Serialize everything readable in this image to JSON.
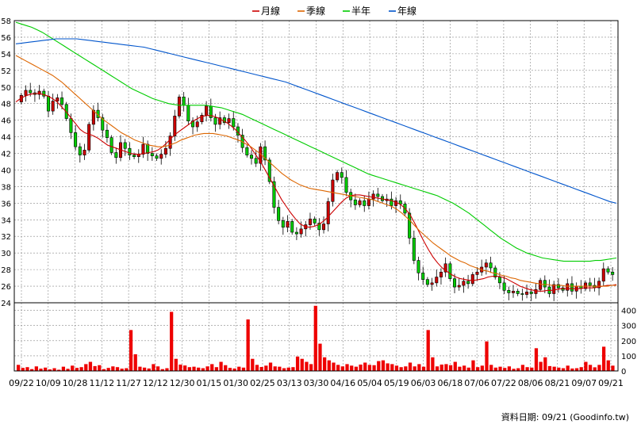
{
  "chart_data": [
    {
      "type": "candlestick",
      "legend": {
        "placement": "top-center",
        "items": [
          {
            "name": "月線",
            "color": "#cc0000"
          },
          {
            "name": "季線",
            "color": "#dd6600"
          },
          {
            "name": "半年",
            "color": "#00cc00"
          },
          {
            "name": "年線",
            "color": "#0055cc"
          }
        ]
      },
      "ylim": [
        24,
        58
      ],
      "yticks": [
        24,
        26,
        28,
        30,
        32,
        34,
        36,
        38,
        40,
        42,
        44,
        46,
        48,
        50,
        52,
        54,
        56,
        58
      ],
      "grid": true,
      "up_color": "#cc0000",
      "down_color": "#00cc00",
      "close": [
        49,
        49.6,
        49.3,
        49.1,
        49.5,
        48.9,
        47.1,
        48.3,
        48.7,
        47.9,
        46.2,
        44.5,
        42.8,
        41.8,
        42.4,
        45.5,
        47.2,
        46.3,
        44.8,
        43.9,
        42.1,
        41.5,
        43.3,
        42.6,
        41.8,
        41.6,
        41.9,
        43.1,
        42,
        41.7,
        41.4,
        41.9,
        42.6,
        44.1,
        46.5,
        48.8,
        47.8,
        45.9,
        45.2,
        45.8,
        46.6,
        47.7,
        46.3,
        45.5,
        46.3,
        45.7,
        46.2,
        45.2,
        44.2,
        42.7,
        41.8,
        41.4,
        40.8,
        42.8,
        41.2,
        38.6,
        35.5,
        33.9,
        33.1,
        33.8,
        32.5,
        32.3,
        32.9,
        33.4,
        34.1,
        33.6,
        32.8,
        33.5,
        36.2,
        38.8,
        39.7,
        39.1,
        37.3,
        36.4,
        35.8,
        36.3,
        35.7,
        36.5,
        37.1,
        36.8,
        36.3,
        36.5,
        35.7,
        36.3,
        35.9,
        34.8,
        31.8,
        29.1,
        27.6,
        26.8,
        26.2,
        26.4,
        27.1,
        27.7,
        28.7,
        26.9,
        25.9,
        26.1,
        26.6,
        26.3,
        27.4,
        27.7,
        28.3,
        28.8,
        28.2,
        27.1,
        26.4,
        25.5,
        25.2,
        25.4,
        25.1,
        25,
        25.3,
        25.1,
        25.6,
        26.7,
        25.9,
        25.1,
        26.2,
        25.8,
        25.5,
        26.3,
        25.4,
        26,
        25.7,
        26.4,
        26.1,
        25.8,
        26.6,
        28.1,
        27.7,
        27.4
      ],
      "ma": {
        "月線": [
          48.2,
          48.6,
          48.9,
          49.1,
          49.2,
          49.2,
          49.1,
          48.9,
          48.6,
          48.2,
          47.6,
          47,
          46.3,
          45.6,
          44.9,
          44.5,
          44.3,
          44.1,
          43.8,
          43.4,
          43,
          42.8,
          42.6,
          42.4,
          42.2,
          42,
          41.9,
          41.9,
          42,
          42.1,
          42.2,
          42.4,
          42.8,
          43.3,
          43.9,
          44.4,
          44.8,
          45.2,
          45.6,
          46,
          46.3,
          46.5,
          46.6,
          46.5,
          46.3,
          46,
          45.7,
          45.3,
          44.8,
          44.2,
          43.6,
          42.9,
          42.1,
          41.3,
          40.4,
          39.4,
          38.4,
          37.4,
          36.4,
          35.6,
          34.8,
          34.1,
          33.5,
          33.2,
          33.1,
          33.2,
          33.4,
          33.8,
          34.3,
          34.9,
          35.5,
          36.1,
          36.6,
          36.9,
          37,
          37,
          36.9,
          36.8,
          36.7,
          36.6,
          36.5,
          36.4,
          36.3,
          36.1,
          35.8,
          35.3,
          34.6,
          33.6,
          32.5,
          31.4,
          30.4,
          29.5,
          28.8,
          28.2,
          27.8,
          27.4,
          27.1,
          26.9,
          26.8,
          26.7,
          26.7,
          26.8,
          26.9,
          27.1,
          27.2,
          27.2,
          27.1,
          26.9,
          26.6,
          26.3,
          26,
          25.8,
          25.6,
          25.5,
          25.4,
          25.4,
          25.5,
          25.5,
          25.6,
          25.7,
          25.7,
          25.7,
          25.7,
          25.7,
          25.8,
          25.8,
          25.8,
          25.9,
          26,
          26.1,
          26.1,
          26.2
        ],
        "季線": [
          53.8,
          53.5,
          53.2,
          52.9,
          52.6,
          52.3,
          52,
          51.7,
          51.4,
          51,
          50.6,
          50.1,
          49.6,
          49.1,
          48.6,
          48.1,
          47.6,
          47.1,
          46.6,
          46.1,
          45.7,
          45.3,
          44.9,
          44.5,
          44.2,
          43.9,
          43.6,
          43.4,
          43.2,
          43,
          42.9,
          42.8,
          42.8,
          42.9,
          43.1,
          43.3,
          43.6,
          43.8,
          44,
          44.2,
          44.3,
          44.4,
          44.4,
          44.4,
          44.3,
          44.2,
          44.1,
          43.9,
          43.7,
          43.5,
          43.2,
          42.9,
          42.5,
          42.1,
          41.6,
          41.1,
          40.6,
          40.1,
          39.6,
          39.2,
          38.8,
          38.5,
          38.2,
          38,
          37.8,
          37.7,
          37.6,
          37.5,
          37.4,
          37.3,
          37.2,
          37.1,
          37,
          36.9,
          36.8,
          36.7,
          36.6,
          36.5,
          36.4,
          36.2,
          36,
          35.8,
          35.6,
          35.3,
          34.9,
          34.4,
          33.9,
          33.3,
          32.7,
          32.2,
          31.7,
          31.2,
          30.8,
          30.4,
          30,
          29.6,
          29.3,
          29,
          28.8,
          28.5,
          28.3,
          28.1,
          27.9,
          27.8,
          27.6,
          27.5,
          27.3,
          27.2,
          27,
          26.9,
          26.7,
          26.6,
          26.5,
          26.4,
          26.3,
          26.2,
          26.2,
          26.1,
          26.1,
          26.1,
          26,
          26,
          26,
          26,
          26,
          26,
          26,
          26,
          26,
          26,
          26.1,
          26.1
        ],
        "半年": [
          57.8,
          57.6,
          57.4,
          57.2,
          56.9,
          56.6,
          56.2,
          55.8,
          55.4,
          55,
          54.6,
          54.2,
          53.8,
          53.4,
          53,
          52.6,
          52.2,
          51.8,
          51.4,
          51,
          50.6,
          50.2,
          49.8,
          49.5,
          49.2,
          48.9,
          48.6,
          48.4,
          48.2,
          48,
          47.9,
          47.8,
          47.8,
          47.8,
          47.8,
          47.8,
          47.8,
          47.7,
          47.6,
          47.5,
          47.3,
          47.1,
          46.9,
          46.7,
          46.4,
          46.1,
          45.8,
          45.5,
          45.2,
          44.9,
          44.6,
          44.3,
          44,
          43.7,
          43.4,
          43.1,
          42.8,
          42.5,
          42.2,
          41.9,
          41.6,
          41.3,
          41,
          40.7,
          40.4,
          40.1,
          39.8,
          39.5,
          39.3,
          39.1,
          38.9,
          38.7,
          38.5,
          38.3,
          38.1,
          37.9,
          37.7,
          37.5,
          37.3,
          37.1,
          36.9,
          36.6,
          36.3,
          36,
          35.6,
          35.2,
          34.8,
          34.3,
          33.8,
          33.3,
          32.8,
          32.3,
          31.8,
          31.4,
          31,
          30.6,
          30.3,
          30,
          29.8,
          29.6,
          29.4,
          29.3,
          29.2,
          29.1,
          29,
          29,
          29,
          29,
          29,
          29,
          29.1,
          29.1,
          29.2,
          29.3,
          29.4
        ],
        "年線": [
          55.2,
          55.3,
          55.4,
          55.5,
          55.6,
          55.7,
          55.8,
          55.8,
          55.8,
          55.8,
          55.7,
          55.6,
          55.5,
          55.4,
          55.3,
          55.2,
          55.1,
          55,
          54.9,
          54.8,
          54.6,
          54.4,
          54.2,
          54,
          53.8,
          53.6,
          53.4,
          53.2,
          53,
          52.8,
          52.6,
          52.4,
          52.2,
          52,
          51.8,
          51.6,
          51.4,
          51.2,
          51,
          50.8,
          50.6,
          50.3,
          50,
          49.7,
          49.4,
          49.1,
          48.8,
          48.5,
          48.2,
          47.9,
          47.6,
          47.3,
          47,
          46.7,
          46.4,
          46.1,
          45.8,
          45.5,
          45.2,
          44.9,
          44.6,
          44.3,
          44,
          43.7,
          43.4,
          43.1,
          42.8,
          42.5,
          42.2,
          41.9,
          41.6,
          41.3,
          41,
          40.7,
          40.4,
          40.1,
          39.8,
          39.5,
          39.2,
          38.9,
          38.6,
          38.3,
          38,
          37.7,
          37.4,
          37.1,
          36.8,
          36.5,
          36.2,
          36
        ]
      },
      "x_ticklabels": [
        "09/22",
        "10/09",
        "10/28",
        "11/12",
        "11/27",
        "12/12",
        "12/30",
        "01/15",
        "01/30",
        "02/25",
        "03/13",
        "03/30",
        "04/16",
        "05/04",
        "05/19",
        "06/03",
        "06/18",
        "07/06",
        "07/22",
        "08/06",
        "08/21",
        "09/07",
        "09/21"
      ]
    },
    {
      "type": "bar",
      "title": "",
      "color": "#ee0000",
      "ylim": [
        0,
        450
      ],
      "yticks": [
        0,
        100,
        200,
        300,
        400
      ],
      "grid": true,
      "values": [
        40,
        20,
        25,
        12,
        30,
        15,
        22,
        10,
        18,
        8,
        28,
        14,
        35,
        20,
        25,
        45,
        60,
        32,
        38,
        12,
        20,
        30,
        25,
        15,
        18,
        270,
        110,
        28,
        22,
        16,
        45,
        30,
        12,
        18,
        390,
        80,
        42,
        36,
        25,
        28,
        22,
        18,
        30,
        45,
        25,
        60,
        38,
        20,
        16,
        28,
        22,
        340,
        80,
        40,
        26,
        35,
        55,
        30,
        28,
        18,
        22,
        25,
        95,
        80,
        60,
        45,
        430,
        180,
        90,
        70,
        55,
        40,
        30,
        45,
        35,
        28,
        42,
        55,
        40,
        38,
        65,
        70,
        50,
        45,
        35,
        25,
        30,
        55,
        30,
        45,
        28,
        270,
        90,
        30,
        42,
        45,
        38,
        60,
        28,
        35,
        22,
        70,
        25,
        35,
        195,
        40,
        22,
        28,
        20,
        30,
        14,
        18,
        40,
        25,
        22,
        150,
        60,
        90,
        32,
        28,
        22,
        18,
        35,
        16,
        18,
        25,
        60,
        40,
        24,
        40,
        160,
        70,
        35
      ]
    }
  ],
  "footer": {
    "credit": "資料日期: 09/21 (Goodinfo.tw)"
  }
}
